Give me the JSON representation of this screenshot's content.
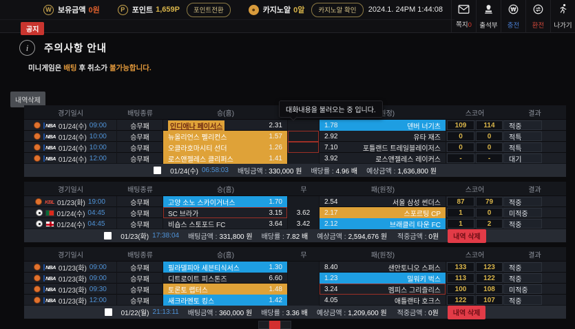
{
  "topbar": {
    "wallet": {
      "label": "보유금액",
      "value": "0원"
    },
    "points": {
      "label": "포인트",
      "value": "1,659P",
      "convert_button": "포인트전환"
    },
    "casino": {
      "label": "카지노알",
      "value": "0알",
      "check_button": "카지노알 확인"
    },
    "datetime": "2024.1. 24PM 1:44:08",
    "menu": [
      {
        "icon": "mail-icon",
        "label": "쪽지",
        "badge": "0",
        "label_color": "#dcdcdc"
      },
      {
        "icon": "stamp-icon",
        "label": "출석부",
        "badge": "",
        "label_color": "#dcdcdc"
      },
      {
        "icon": "charge-icon",
        "label": "충전",
        "badge": "",
        "label_color": "#4a7fd4"
      },
      {
        "icon": "exchange-icon",
        "label": "환전",
        "badge": "",
        "label_color": "#d4483a"
      },
      {
        "icon": "exit-icon",
        "label": "나가기",
        "badge": "",
        "label_color": "#dcdcdc"
      }
    ]
  },
  "notice_badge": "공지",
  "notice": {
    "title": "주의사항 안내",
    "body_parts": [
      {
        "text": "미니게임은 ",
        "highlight": false
      },
      {
        "text": "배팅",
        "highlight": true
      },
      {
        "text": " 후 취소가 ",
        "highlight": false
      },
      {
        "text": "불가능합니다.",
        "highlight": true
      }
    ]
  },
  "history_delete_button": "내역삭제",
  "tooltip": "대화내용을 불러오는 중 입니다.",
  "table": {
    "columns": {
      "datetime": "경기일시",
      "bet_type": "배팅종류",
      "home": "승(홈)",
      "draw": "무",
      "away": "패(원정)",
      "score": "스코어",
      "result": "결과"
    },
    "summary_labels": {
      "bet": "배팅금액 :",
      "odds": "배당률 :",
      "expected": "예상금액 :",
      "hit": "적중금액 :",
      "delete": "내역 삭제"
    },
    "groups": [
      {
        "rows": [
          {
            "sport": "basketball",
            "league": "NBA",
            "date": "01/24(수)",
            "time": "09:00",
            "bet_type": "승무패",
            "home": {
              "name": "인디애나 페이서스",
              "odds": "2.31",
              "state": "pick-text"
            },
            "draw": {
              "odds": "",
              "state": "plain"
            },
            "away": {
              "odds": "1.78",
              "name": "덴버 너기츠",
              "state": "blue"
            },
            "score_home": "109",
            "score_away": "114",
            "result": "적중"
          },
          {
            "sport": "basketball",
            "league": "NBA",
            "date": "01/24(수)",
            "time": "10:00",
            "bet_type": "승무패",
            "home": {
              "name": "뉴올리언스 펠리컨스",
              "odds": "1.57",
              "state": "orange"
            },
            "draw": {
              "odds": "",
              "state": "redborder"
            },
            "away": {
              "odds": "2.92",
              "name": "유타 재즈",
              "state": "plain"
            },
            "score_home": "0",
            "score_away": "0",
            "result": "적특"
          },
          {
            "sport": "basketball",
            "league": "NBA",
            "date": "01/24(수)",
            "time": "10:00",
            "bet_type": "승무패",
            "home": {
              "name": "오클라호마시티 선더",
              "odds": "1.26",
              "state": "orange"
            },
            "draw": {
              "odds": "",
              "state": "redborder"
            },
            "away": {
              "odds": "7.10",
              "name": "포틀랜드 트레일블레이저스",
              "state": "plain"
            },
            "score_home": "0",
            "score_away": "0",
            "result": "적특"
          },
          {
            "sport": "basketball",
            "league": "NBA",
            "date": "01/24(수)",
            "time": "12:00",
            "bet_type": "승무패",
            "home": {
              "name": "로스앤젤레스 클리퍼스",
              "odds": "1.41",
              "state": "orange"
            },
            "draw": {
              "odds": "",
              "state": "plain"
            },
            "away": {
              "odds": "3.92",
              "name": "로스앤젤레스 레이커스",
              "state": "plain"
            },
            "score_home": "-",
            "score_away": "-",
            "result": "대기"
          }
        ],
        "summary": {
          "date": "01/24(수)",
          "time": "06:58:03",
          "bet_amount": "330,000 원",
          "odds": "4.96 배",
          "expected": "1,636,800 원",
          "hit_amount": "",
          "has_delete": false
        }
      },
      {
        "rows": [
          {
            "sport": "basketball",
            "league": "KBL",
            "date": "01/23(화)",
            "time": "19:00",
            "bet_type": "승무패",
            "home": {
              "name": "고양 소노 스카이거너스",
              "odds": "1.70",
              "state": "blue"
            },
            "draw": {
              "odds": "",
              "state": "plain"
            },
            "away": {
              "odds": "2.54",
              "name": "서울 삼성 썬더스",
              "state": "plain"
            },
            "score_home": "87",
            "score_away": "79",
            "result": "적중"
          },
          {
            "sport": "soccer",
            "league": "PT",
            "date": "01/24(수)",
            "time": "04:45",
            "bet_type": "승무패",
            "home": {
              "name": "SC 브라가",
              "odds": "3.15",
              "state": "redborder"
            },
            "draw": {
              "odds": "3.62",
              "state": "plain"
            },
            "away": {
              "odds": "2.17",
              "name": "스포르팅 CP",
              "state": "orange"
            },
            "score_home": "1",
            "score_away": "0",
            "result": "미적중"
          },
          {
            "sport": "soccer",
            "league": "EN",
            "date": "01/24(수)",
            "time": "04:45",
            "bet_type": "승무패",
            "home": {
              "name": "비숍스 스토포드 FC",
              "odds": "3.64",
              "state": "plain"
            },
            "draw": {
              "odds": "3.42",
              "state": "plain"
            },
            "away": {
              "odds": "2.12",
              "name": "브래클리 타운 FC",
              "state": "blue"
            },
            "score_home": "1",
            "score_away": "2",
            "result": "적중"
          }
        ],
        "summary": {
          "date": "01/23(화)",
          "time": "17:38:04",
          "bet_amount": "331,800 원",
          "odds": "7.82 배",
          "expected": "2,594,676 원",
          "hit_amount": "0원",
          "has_delete": true
        }
      },
      {
        "rows": [
          {
            "sport": "basketball",
            "league": "NBA",
            "date": "01/23(화)",
            "time": "09:00",
            "bet_type": "승무패",
            "home": {
              "name": "필라델피아 세븐티식서스",
              "odds": "1.30",
              "state": "blue"
            },
            "draw": {
              "odds": "",
              "state": "plain"
            },
            "away": {
              "odds": "8.40",
              "name": "샌안토니오 스퍼스",
              "state": "plain"
            },
            "score_home": "133",
            "score_away": "123",
            "result": "적중"
          },
          {
            "sport": "basketball",
            "league": "NBA",
            "date": "01/23(화)",
            "time": "09:00",
            "bet_type": "승무패",
            "home": {
              "name": "디트로이트 피스톤즈",
              "odds": "6.60",
              "state": "plain"
            },
            "draw": {
              "odds": "",
              "state": "plain"
            },
            "away": {
              "odds": "1.23",
              "name": "밀워키 벅스",
              "state": "blue"
            },
            "score_home": "113",
            "score_away": "122",
            "result": "적중"
          },
          {
            "sport": "basketball",
            "league": "NBA",
            "date": "01/23(화)",
            "time": "09:30",
            "bet_type": "승무패",
            "home": {
              "name": "토론토 랩터스",
              "odds": "1.48",
              "state": "orange"
            },
            "draw": {
              "odds": "",
              "state": "plain"
            },
            "away": {
              "odds": "3.24",
              "name": "멤피스 그리즐리스",
              "state": "redborder"
            },
            "score_home": "100",
            "score_away": "108",
            "result": "미적중"
          },
          {
            "sport": "basketball",
            "league": "NBA",
            "date": "01/23(화)",
            "time": "12:00",
            "bet_type": "승무패",
            "home": {
              "name": "새크라멘토 킹스",
              "odds": "1.42",
              "state": "blue"
            },
            "draw": {
              "odds": "",
              "state": "plain"
            },
            "away": {
              "odds": "4.05",
              "name": "애틀랜타 호크스",
              "state": "plain"
            },
            "score_home": "122",
            "score_away": "107",
            "result": "적중"
          }
        ],
        "summary": {
          "date": "01/22(월)",
          "time": "21:13:11",
          "bet_amount": "360,000 원",
          "odds": "3.36 배",
          "expected": "1,209,600 원",
          "hit_amount": "0원",
          "has_delete": true
        }
      }
    ]
  },
  "colors": {
    "accent_orange": "#dfa238",
    "accent_blue": "#1e9ee2",
    "score_gold": "#d8b44a",
    "danger_red": "#9e2f26"
  }
}
